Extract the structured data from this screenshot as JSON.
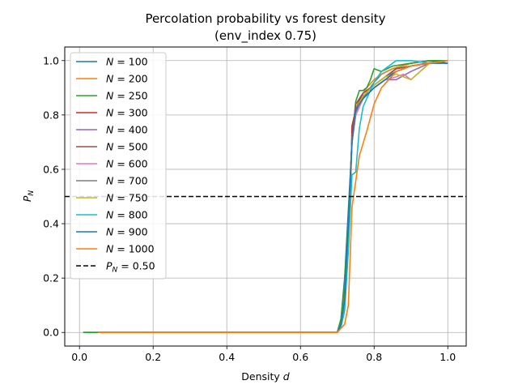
{
  "chart_data": {
    "type": "line",
    "title": "Percolation probability vs forest density",
    "subtitle": "(env_index 0.75)",
    "xlabel": "Density d",
    "ylabel": "P_N",
    "xlim": [
      -0.04,
      1.05
    ],
    "ylim": [
      -0.05,
      1.05
    ],
    "xticks": [
      0.0,
      0.2,
      0.4,
      0.6,
      0.8,
      1.0
    ],
    "xtick_labels": [
      "0.0",
      "0.2",
      "0.4",
      "0.6",
      "0.8",
      "1.0"
    ],
    "yticks": [
      0.0,
      0.2,
      0.4,
      0.6,
      0.8,
      1.0
    ],
    "ytick_labels": [
      "0.0",
      "0.2",
      "0.4",
      "0.6",
      "0.8",
      "1.0"
    ],
    "grid": true,
    "legend_position": "top-left",
    "series": [
      {
        "name": "N = 100",
        "color": "#1f77b4",
        "x": [
          0.01,
          0.7,
          0.71,
          0.72,
          0.73,
          0.74,
          0.75,
          0.76,
          0.78,
          0.8,
          0.82,
          0.85,
          0.9,
          0.95,
          1.0
        ],
        "y": [
          0,
          0,
          0.05,
          0.2,
          0.45,
          0.7,
          0.8,
          0.85,
          0.88,
          0.92,
          0.95,
          0.97,
          0.99,
          1.0,
          0.99
        ]
      },
      {
        "name": "N = 200",
        "color": "#ff7f0e",
        "x": [
          0.02,
          0.7,
          0.71,
          0.72,
          0.73,
          0.74,
          0.75,
          0.76,
          0.78,
          0.8,
          0.82,
          0.85,
          0.9,
          0.95,
          1.0
        ],
        "y": [
          0,
          0,
          0.04,
          0.15,
          0.4,
          0.7,
          0.82,
          0.86,
          0.9,
          0.93,
          0.95,
          0.97,
          0.99,
          1.0,
          1.0
        ]
      },
      {
        "name": "N = 250",
        "color": "#2ca02c",
        "x": [
          0.01,
          0.7,
          0.71,
          0.72,
          0.73,
          0.74,
          0.75,
          0.76,
          0.77,
          0.78,
          0.79,
          0.8,
          0.82,
          0.85,
          0.9,
          0.95,
          1.0
        ],
        "y": [
          0,
          0,
          0.05,
          0.18,
          0.42,
          0.7,
          0.85,
          0.89,
          0.89,
          0.9,
          0.93,
          0.97,
          0.96,
          0.98,
          0.99,
          1.0,
          1.0
        ]
      },
      {
        "name": "N = 300",
        "color": "#d62728",
        "x": [
          0.05,
          0.7,
          0.71,
          0.72,
          0.73,
          0.735,
          0.74,
          0.75,
          0.77,
          0.8,
          0.83,
          0.86,
          0.9,
          0.94,
          1.0
        ],
        "y": [
          0,
          0,
          0.03,
          0.1,
          0.35,
          0.46,
          0.76,
          0.82,
          0.88,
          0.91,
          0.94,
          0.97,
          0.98,
          0.99,
          1.0
        ]
      },
      {
        "name": "N = 400",
        "color": "#9467bd",
        "x": [
          0.05,
          0.7,
          0.71,
          0.72,
          0.73,
          0.74,
          0.75,
          0.77,
          0.8,
          0.83,
          0.86,
          0.9,
          0.95,
          1.0
        ],
        "y": [
          0,
          0,
          0.03,
          0.12,
          0.38,
          0.72,
          0.8,
          0.86,
          0.9,
          0.93,
          0.93,
          0.96,
          0.99,
          1.0
        ]
      },
      {
        "name": "N = 500",
        "color": "#8c564b",
        "x": [
          0.05,
          0.7,
          0.71,
          0.72,
          0.73,
          0.74,
          0.75,
          0.77,
          0.8,
          0.83,
          0.86,
          0.9,
          0.95,
          1.0
        ],
        "y": [
          0,
          0,
          0.03,
          0.1,
          0.35,
          0.72,
          0.84,
          0.88,
          0.91,
          0.94,
          0.97,
          0.98,
          0.99,
          1.0
        ]
      },
      {
        "name": "N = 600",
        "color": "#e377c2",
        "x": [
          0.05,
          0.7,
          0.71,
          0.72,
          0.73,
          0.74,
          0.75,
          0.77,
          0.8,
          0.83,
          0.86,
          0.88,
          0.9,
          0.95,
          1.0
        ],
        "y": [
          0,
          0,
          0.03,
          0.12,
          0.38,
          0.7,
          0.8,
          0.86,
          0.9,
          0.93,
          0.94,
          0.95,
          0.93,
          0.99,
          1.0
        ]
      },
      {
        "name": "N = 700",
        "color": "#7f7f7f",
        "x": [
          0.05,
          0.7,
          0.71,
          0.72,
          0.73,
          0.74,
          0.75,
          0.77,
          0.8,
          0.83,
          0.86,
          0.9,
          0.95,
          1.0
        ],
        "y": [
          0,
          0,
          0.03,
          0.1,
          0.36,
          0.7,
          0.82,
          0.87,
          0.91,
          0.94,
          0.96,
          0.98,
          0.99,
          1.0
        ]
      },
      {
        "name": "N = 750",
        "color": "#bcbd22",
        "x": [
          0.05,
          0.7,
          0.71,
          0.72,
          0.73,
          0.74,
          0.75,
          0.77,
          0.8,
          0.83,
          0.86,
          0.9,
          0.95,
          1.0
        ],
        "y": [
          0,
          0,
          0.03,
          0.12,
          0.38,
          0.7,
          0.82,
          0.87,
          0.91,
          0.94,
          0.95,
          0.93,
          0.99,
          1.0
        ]
      },
      {
        "name": "N = 800",
        "color": "#17becf",
        "x": [
          0.05,
          0.7,
          0.71,
          0.72,
          0.73,
          0.74,
          0.75,
          0.76,
          0.77,
          0.78,
          0.8,
          0.82,
          0.84,
          0.86,
          0.9,
          0.95,
          1.0
        ],
        "y": [
          0,
          0,
          0.02,
          0.08,
          0.3,
          0.58,
          0.59,
          0.75,
          0.83,
          0.86,
          0.92,
          0.96,
          0.98,
          1.0,
          1.0,
          0.99,
          1.0
        ]
      },
      {
        "name": "N = 900",
        "color": "#1f77b4",
        "x": [
          0.05,
          0.7,
          0.71,
          0.72,
          0.73,
          0.74,
          0.75,
          0.77,
          0.8,
          0.83,
          0.86,
          0.9,
          0.95,
          1.0
        ],
        "y": [
          0,
          0,
          0.03,
          0.12,
          0.4,
          0.7,
          0.82,
          0.86,
          0.9,
          0.93,
          0.96,
          0.98,
          0.99,
          0.99
        ]
      },
      {
        "name": "N = 1000",
        "color": "#ff7f0e",
        "x": [
          0.05,
          0.7,
          0.72,
          0.73,
          0.74,
          0.76,
          0.78,
          0.8,
          0.82,
          0.84,
          0.86,
          0.9,
          0.95,
          1.0
        ],
        "y": [
          0,
          0,
          0.03,
          0.1,
          0.46,
          0.65,
          0.74,
          0.84,
          0.9,
          0.93,
          0.96,
          0.98,
          0.99,
          1.0
        ]
      }
    ],
    "reference_line": {
      "name": "P_N = 0.50",
      "y": 0.5,
      "color": "#000000",
      "dash": "dashed"
    },
    "legend_entries": [
      {
        "prefix": "N =",
        "value": "100"
      },
      {
        "prefix": "N =",
        "value": "200"
      },
      {
        "prefix": "N =",
        "value": "250"
      },
      {
        "prefix": "N =",
        "value": "300"
      },
      {
        "prefix": "N =",
        "value": "400"
      },
      {
        "prefix": "N =",
        "value": "500"
      },
      {
        "prefix": "N =",
        "value": "600"
      },
      {
        "prefix": "N =",
        "value": "700"
      },
      {
        "prefix": "N =",
        "value": "750"
      },
      {
        "prefix": "N =",
        "value": "800"
      },
      {
        "prefix": "N =",
        "value": "900"
      },
      {
        "prefix": "N =",
        "value": "1000"
      }
    ],
    "reference_legend": {
      "value": "0.50"
    }
  }
}
